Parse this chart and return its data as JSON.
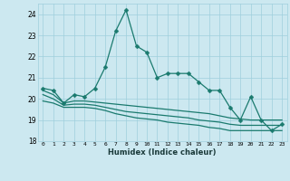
{
  "xlabel": "Humidex (Indice chaleur)",
  "x": [
    0,
    1,
    2,
    3,
    4,
    5,
    6,
    7,
    8,
    9,
    10,
    11,
    12,
    13,
    14,
    15,
    16,
    17,
    18,
    19,
    20,
    21,
    22,
    23
  ],
  "main_line": [
    20.5,
    20.4,
    19.8,
    20.2,
    20.1,
    20.5,
    21.5,
    23.2,
    24.2,
    22.5,
    22.2,
    21.0,
    21.2,
    21.2,
    21.2,
    20.8,
    20.4,
    20.4,
    19.6,
    19.0,
    20.1,
    19.0,
    18.5,
    18.8
  ],
  "line2": [
    20.4,
    20.2,
    19.8,
    19.9,
    19.9,
    19.85,
    19.8,
    19.75,
    19.7,
    19.65,
    19.6,
    19.55,
    19.5,
    19.45,
    19.4,
    19.35,
    19.3,
    19.2,
    19.1,
    19.05,
    19.0,
    19.0,
    19.0,
    19.0
  ],
  "line3": [
    20.2,
    20.0,
    19.7,
    19.75,
    19.75,
    19.7,
    19.6,
    19.5,
    19.4,
    19.35,
    19.3,
    19.25,
    19.2,
    19.15,
    19.1,
    19.0,
    18.95,
    18.9,
    18.8,
    18.75,
    18.75,
    18.75,
    18.75,
    18.75
  ],
  "line4": [
    19.9,
    19.8,
    19.6,
    19.6,
    19.6,
    19.55,
    19.45,
    19.3,
    19.2,
    19.1,
    19.05,
    19.0,
    18.9,
    18.85,
    18.8,
    18.75,
    18.65,
    18.6,
    18.5,
    18.5,
    18.5,
    18.5,
    18.5,
    18.5
  ],
  "ylim": [
    18,
    24.5
  ],
  "yticks": [
    18,
    19,
    20,
    21,
    22,
    23,
    24
  ],
  "bg_color": "#cce8f0",
  "grid_color": "#9fcfdc",
  "line_color": "#1a7a6e",
  "markersize": 2.5,
  "linewidth": 0.9
}
